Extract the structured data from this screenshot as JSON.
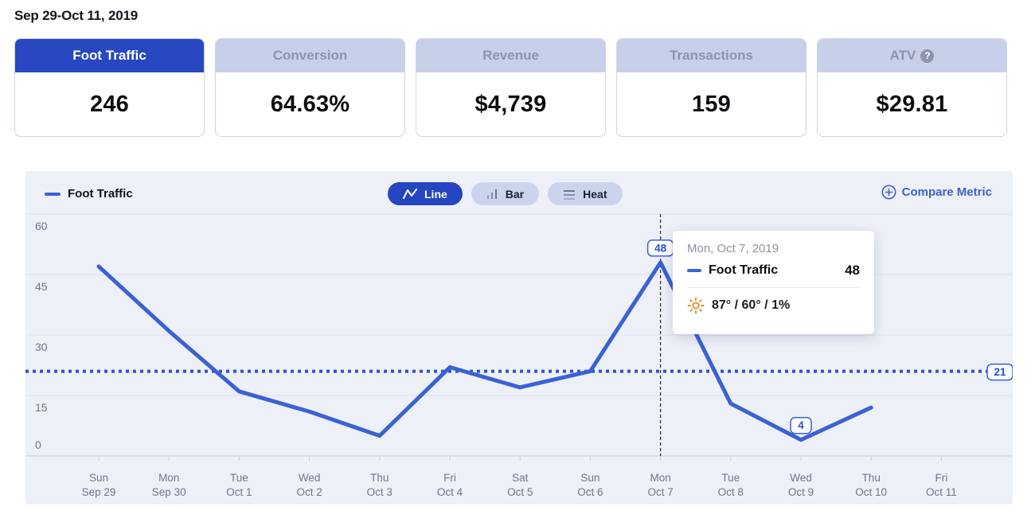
{
  "page": {
    "date_range": "Sep 29-Oct 11, 2019"
  },
  "icons": {
    "help_glyph": "?"
  },
  "metric_cards": [
    {
      "label": "Foot Traffic",
      "value": "246",
      "selected": true
    },
    {
      "label": "Conversion",
      "value": "64.63%",
      "selected": false
    },
    {
      "label": "Revenue",
      "value": "$4,739",
      "selected": false
    },
    {
      "label": "Transactions",
      "value": "159",
      "selected": false
    },
    {
      "label": "ATV",
      "value": "$29.81",
      "selected": false,
      "has_help_icon": true
    }
  ],
  "chart_header": {
    "legend_label": "Foot Traffic",
    "view_toggles": [
      {
        "label": "Line",
        "icon": "line-chart-icon",
        "active": true
      },
      {
        "label": "Bar",
        "icon": "bar-chart-icon",
        "active": false
      },
      {
        "label": "Heat",
        "icon": "heat-map-icon",
        "active": false
      }
    ],
    "compare_label": "Compare Metric"
  },
  "tooltip": {
    "date": "Mon, Oct 7, 2019",
    "series": "Foot Traffic",
    "value": "48",
    "weather": "87° / 60° / 1%",
    "weather_icon": "sun-icon"
  },
  "chart_data": {
    "type": "line",
    "series_name": "Foot Traffic",
    "x_labels": [
      {
        "day": "Sun",
        "date": "Sep 29"
      },
      {
        "day": "Mon",
        "date": "Sep 30"
      },
      {
        "day": "Tue",
        "date": "Oct 1"
      },
      {
        "day": "Wed",
        "date": "Oct 2"
      },
      {
        "day": "Thu",
        "date": "Oct 3"
      },
      {
        "day": "Fri",
        "date": "Oct 4"
      },
      {
        "day": "Sat",
        "date": "Oct 5"
      },
      {
        "day": "Sun",
        "date": "Oct 6"
      },
      {
        "day": "Mon",
        "date": "Oct 7"
      },
      {
        "day": "Tue",
        "date": "Oct 8"
      },
      {
        "day": "Wed",
        "date": "Oct 9"
      },
      {
        "day": "Thu",
        "date": "Oct 10"
      },
      {
        "day": "Fri",
        "date": "Oct 11"
      }
    ],
    "values": [
      47,
      31,
      16,
      11,
      5,
      22,
      17,
      21,
      48,
      13,
      4,
      12,
      null
    ],
    "ylim": [
      0,
      60
    ],
    "yticks": [
      0,
      15,
      30,
      45,
      60
    ],
    "grid": true,
    "legend_position": "top-left",
    "average_line": {
      "value": 21,
      "label": "21"
    },
    "highlight_index": 8,
    "point_labels": [
      {
        "index": 8,
        "label": "48"
      },
      {
        "index": 10,
        "label": "4"
      }
    ]
  },
  "colors": {
    "accent_blue": "#2847c1",
    "line_blue": "#3a62d4",
    "average_blue": "#2f55c8",
    "badge_text_blue": "#2c51c7",
    "link_blue": "#3b61d1",
    "panel_bg": "#eef0f8",
    "gridline": "#dde1ef",
    "axis_line": "#c7ccdb",
    "axis_text": "#6f7689",
    "highlight_line": "#23262e",
    "sun_orange": "#dd8a33"
  }
}
